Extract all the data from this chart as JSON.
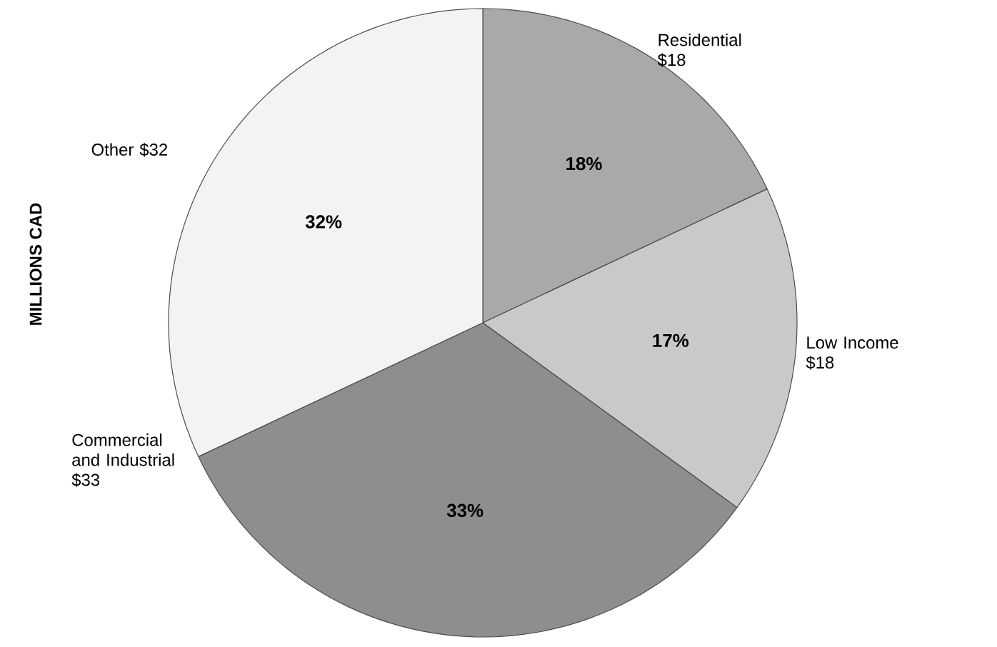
{
  "chart_data": {
    "type": "pie",
    "ylabel": "MILLIONS CAD",
    "categories": [
      "Residential $18",
      "Low Income $18",
      "Commercial and Industrial $33",
      "Other $32"
    ],
    "values": [
      18,
      17,
      33,
      32
    ],
    "value_labels": [
      "18%",
      "17%",
      "33%",
      "32%"
    ],
    "colors": [
      "#a9a9a9",
      "#c9c9c9",
      "#8e8e8e",
      "#f3f3f3"
    ]
  }
}
